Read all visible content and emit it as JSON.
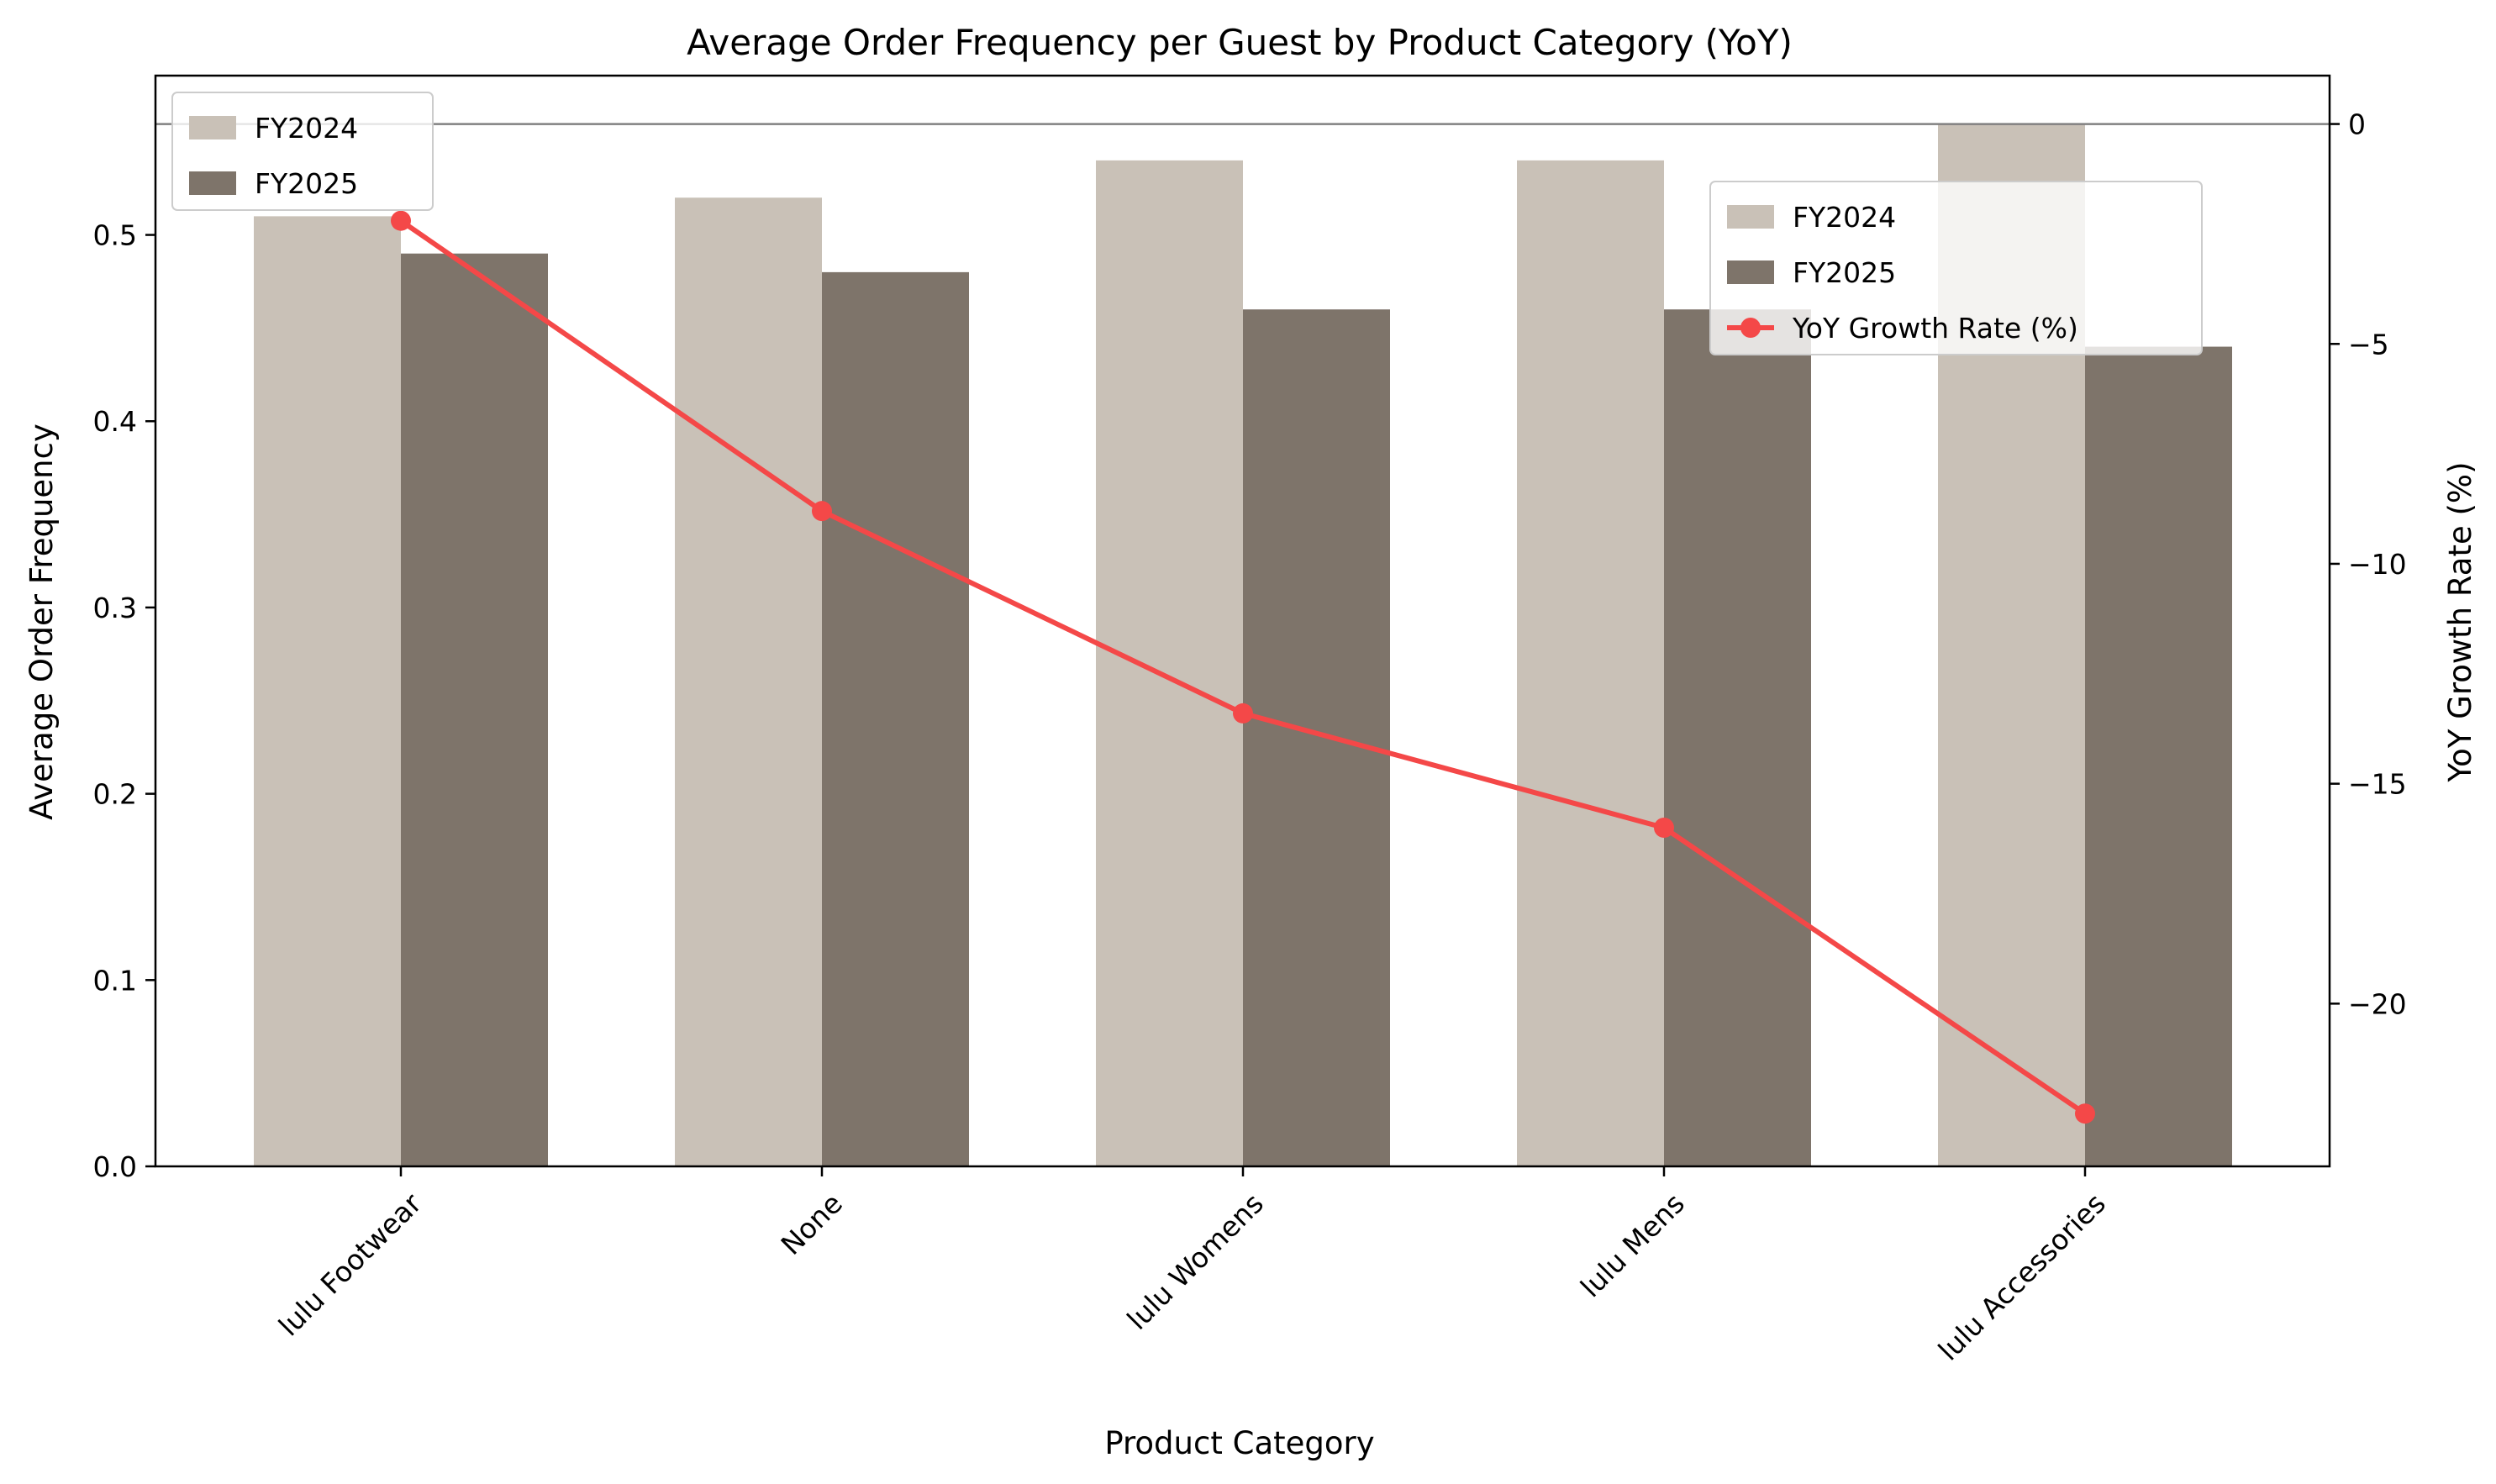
{
  "chart_data": {
    "type": "bar",
    "title": "Average Order Frequency per Guest by Product Category (YoY)",
    "xlabel": "Product Category",
    "ylabel": "Average Order Frequency",
    "y2label": "YoY Growth Rate (%)",
    "categories": [
      "lulu Footwear",
      "None",
      "lulu Womens",
      "lulu Mens",
      "lulu Accessories"
    ],
    "series": [
      {
        "name": "FY2024",
        "kind": "bar",
        "axis": "left",
        "color": "#c9c1b7",
        "values": [
          0.51,
          0.52,
          0.54,
          0.54,
          0.56
        ]
      },
      {
        "name": "FY2025",
        "kind": "bar",
        "axis": "left",
        "color": "#7e746a",
        "values": [
          0.49,
          0.48,
          0.46,
          0.46,
          0.44
        ]
      },
      {
        "name": "YoY Growth Rate (%)",
        "kind": "line",
        "axis": "right",
        "color": "#f44848",
        "values": [
          -2.2,
          -8.8,
          -13.4,
          -16.0,
          -22.5
        ]
      }
    ],
    "ylim": [
      0,
      0.5855
    ],
    "yticks": [
      0.0,
      0.1,
      0.2,
      0.3,
      0.4,
      0.5
    ],
    "ytick_labels": [
      "0.0",
      "0.1",
      "0.2",
      "0.3",
      "0.4",
      "0.5"
    ],
    "y2lim": [
      -23.7,
      1.1
    ],
    "y2ticks": [
      0,
      -5,
      -10,
      -15,
      -20
    ],
    "y2tick_labels": [
      "0",
      "−5",
      "−10",
      "−15",
      "−20"
    ],
    "reference_line": {
      "axis": "right",
      "value": 0,
      "color": "#808080"
    },
    "legend_left": {
      "placement": "top-left",
      "entries": [
        "FY2024",
        "FY2025"
      ]
    },
    "legend_right": {
      "placement": "upper-right",
      "entries": [
        "FY2024",
        "FY2025",
        "YoY Growth Rate (%)"
      ]
    },
    "grid": false
  }
}
